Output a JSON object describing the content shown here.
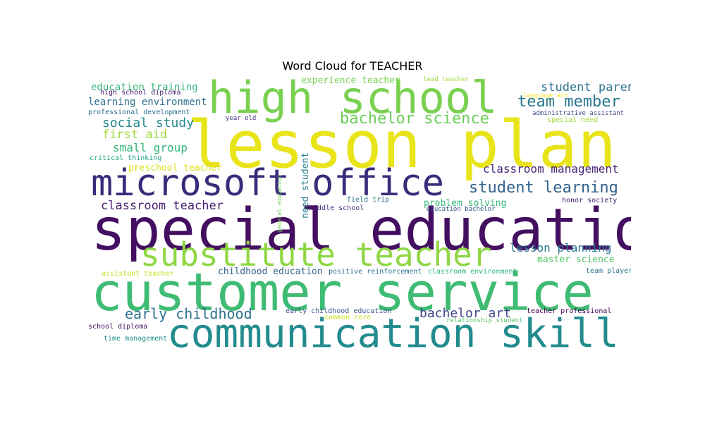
{
  "title": "Word Cloud for TEACHER",
  "words": [
    {
      "text": "lesson plan",
      "color": "#e8e419"
    },
    {
      "text": "special education",
      "color": "#440f61"
    },
    {
      "text": "customer service",
      "color": "#3fbc73"
    },
    {
      "text": "communication skill",
      "color": "#228b8d"
    },
    {
      "text": "high school",
      "color": "#7ad151"
    },
    {
      "text": "microsoft office",
      "color": "#3b2b7a"
    },
    {
      "text": "substitute teacher",
      "color": "#8fd744"
    },
    {
      "text": "team member",
      "color": "#2a788e"
    },
    {
      "text": "bachelor science",
      "color": "#6ccd5a"
    },
    {
      "text": "student parent",
      "color": "#2c738e"
    },
    {
      "text": "student learning",
      "color": "#33628d"
    },
    {
      "text": "classroom management",
      "color": "#482878"
    },
    {
      "text": "social study",
      "color": "#23898e"
    },
    {
      "text": "first aid",
      "color": "#9dd93b"
    },
    {
      "text": "small group",
      "color": "#31b57b"
    },
    {
      "text": "education training",
      "color": "#35b779"
    },
    {
      "text": "learning environment",
      "color": "#2d708e"
    },
    {
      "text": "early childhood",
      "color": "#2c728e"
    },
    {
      "text": "bachelor art",
      "color": "#404688"
    },
    {
      "text": "lesson planning",
      "color": "#2a788e"
    },
    {
      "text": "classroom teacher",
      "color": "#481f70"
    },
    {
      "text": "experience teacher",
      "color": "#7ad151"
    },
    {
      "text": "preschool teacher",
      "color": "#d8e219"
    },
    {
      "text": "master science",
      "color": "#54c568"
    },
    {
      "text": "problem solving",
      "color": "#35b779"
    },
    {
      "text": "childhood education",
      "color": "#33638d"
    },
    {
      "text": "need student",
      "color": "#26828e"
    },
    {
      "text": "high school diploma",
      "color": "#481b6d"
    },
    {
      "text": "professional development",
      "color": "#2c728e"
    },
    {
      "text": "critical thinking",
      "color": "#1fa187"
    },
    {
      "text": "year old",
      "color": "#46327e"
    },
    {
      "text": "lead teacher",
      "color": "#a0da39"
    },
    {
      "text": "language art",
      "color": "#fde725"
    },
    {
      "text": "administrative assistant",
      "color": "#3e4a89"
    },
    {
      "text": "special need",
      "color": "#a0da39"
    },
    {
      "text": "field trip",
      "color": "#2d708e"
    },
    {
      "text": "middle school",
      "color": "#472d7b"
    },
    {
      "text": "general education",
      "color": "#73d056"
    },
    {
      "text": "education bachelor",
      "color": "#3b528b"
    },
    {
      "text": "honor society",
      "color": "#482475"
    },
    {
      "text": "assistant teacher",
      "color": "#c2df23"
    },
    {
      "text": "positive reinforcement",
      "color": "#2d708e"
    },
    {
      "text": "classroom environment",
      "color": "#2fb47c"
    },
    {
      "text": "team player",
      "color": "#2a788e"
    },
    {
      "text": "early childhood education",
      "color": "#3b528b"
    },
    {
      "text": "common core",
      "color": "#cae11f"
    },
    {
      "text": "teacher professional",
      "color": "#440154"
    },
    {
      "text": "relationship student",
      "color": "#52c569"
    },
    {
      "text": "school diploma",
      "color": "#481668"
    },
    {
      "text": "time management",
      "color": "#21918c"
    }
  ]
}
